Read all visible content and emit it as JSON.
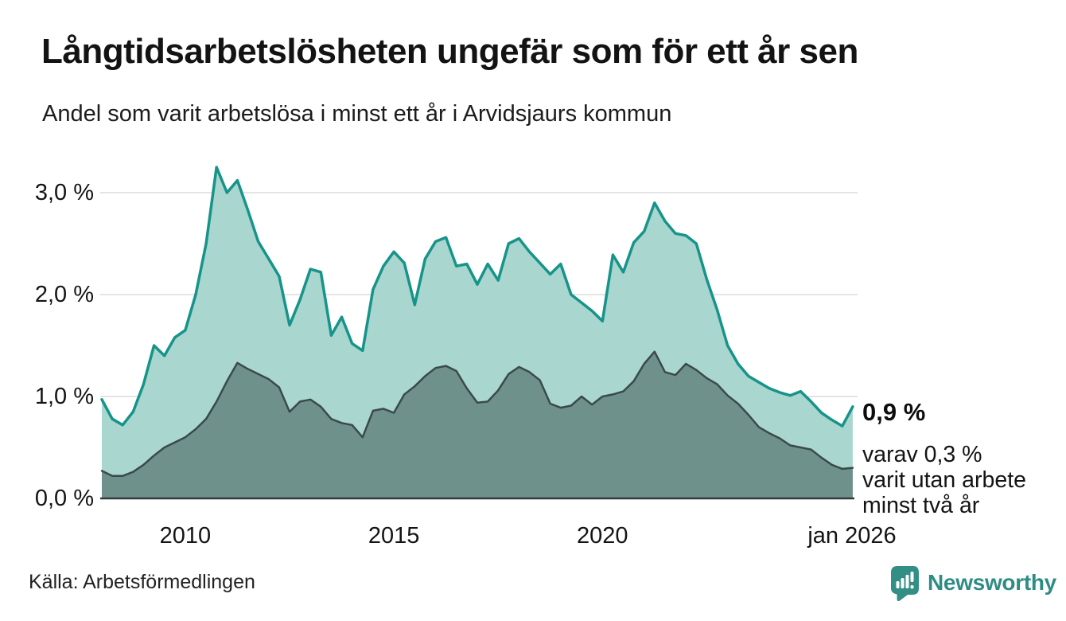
{
  "header": {
    "title": "Långtidsarbetslösheten ungefär som för ett år sen",
    "subtitle": "Andel som varit arbetslösa i minst ett år i Arvidsjaurs kommun"
  },
  "footer": {
    "source": "Källa: Arbetsförmedlingen",
    "brand": "Newsworthy"
  },
  "colors": {
    "series1_line": "#17948a",
    "series1_fill": "#a9d6cf",
    "series2_line": "#3a4a4c",
    "series2_fill": "#6f918c",
    "gridline": "#e4e4e4",
    "baseline": "#333b3b",
    "brand_teal": "#2e8c85",
    "text": "#141414"
  },
  "chart_data": {
    "type": "area",
    "title": "Långtidsarbetslösheten ungefär som för ett år sen",
    "subtitle": "Andel som varit arbetslösa i minst ett år i Arvidsjaurs kommun",
    "unit": "%",
    "x_start": 2008.0,
    "x_step": 0.25,
    "xlim": [
      2008.0,
      2026.04
    ],
    "ylim": [
      0,
      3.4
    ],
    "grid": "horizontal",
    "x_ticks": [
      {
        "x": 2010,
        "label": "2010"
      },
      {
        "x": 2015,
        "label": "2015"
      },
      {
        "x": 2020,
        "label": "2020"
      },
      {
        "x": 2026,
        "label": "jan 2026"
      }
    ],
    "y_ticks": [
      {
        "v": 0,
        "label": "0,0 %",
        "gridline": false
      },
      {
        "v": 1,
        "label": "1,0 %",
        "gridline": true
      },
      {
        "v": 2,
        "label": "2,0 %",
        "gridline": true
      },
      {
        "v": 3,
        "label": "3,0 %",
        "gridline": true
      }
    ],
    "series": [
      {
        "name": "Andel som varit arbetslösa minst ett år",
        "line_color": "#17948a",
        "fill_color": "#a9d6cf",
        "values": [
          0.97,
          0.78,
          0.72,
          0.85,
          1.12,
          1.5,
          1.4,
          1.58,
          1.65,
          2.0,
          2.5,
          3.25,
          3.0,
          3.12,
          2.83,
          2.52,
          2.35,
          2.18,
          1.7,
          1.95,
          2.25,
          2.22,
          1.6,
          1.78,
          1.52,
          1.45,
          2.05,
          2.28,
          2.42,
          2.31,
          1.9,
          2.35,
          2.52,
          2.56,
          2.28,
          2.3,
          2.1,
          2.3,
          2.14,
          2.5,
          2.55,
          2.42,
          2.31,
          2.2,
          2.3,
          2.0,
          1.92,
          1.84,
          1.74,
          2.39,
          2.22,
          2.51,
          2.62,
          2.9,
          2.72,
          2.6,
          2.58,
          2.5,
          2.15,
          1.85,
          1.5,
          1.32,
          1.2,
          1.14,
          1.08,
          1.04,
          1.01,
          1.05,
          0.95,
          0.84,
          0.77,
          0.71,
          0.9
        ]
      },
      {
        "name": "varav arbetslösa minst två år",
        "line_color": "#3a4a4c",
        "fill_color": "#6f918c",
        "values": [
          0.27,
          0.22,
          0.22,
          0.26,
          0.33,
          0.42,
          0.5,
          0.55,
          0.6,
          0.68,
          0.78,
          0.95,
          1.15,
          1.33,
          1.27,
          1.22,
          1.17,
          1.09,
          0.85,
          0.95,
          0.97,
          0.9,
          0.78,
          0.74,
          0.72,
          0.6,
          0.86,
          0.88,
          0.84,
          1.02,
          1.1,
          1.2,
          1.28,
          1.3,
          1.25,
          1.08,
          0.94,
          0.95,
          1.06,
          1.22,
          1.29,
          1.24,
          1.16,
          0.93,
          0.89,
          0.91,
          1.0,
          0.92,
          1.0,
          1.02,
          1.05,
          1.15,
          1.32,
          1.44,
          1.24,
          1.21,
          1.32,
          1.26,
          1.18,
          1.12,
          1.01,
          0.93,
          0.82,
          0.7,
          0.64,
          0.59,
          0.52,
          0.5,
          0.48,
          0.4,
          0.33,
          0.29,
          0.3
        ]
      }
    ],
    "annotations": {
      "end_value_label": "0,9 %",
      "end_sub_lines": [
        "varav 0,3 %",
        "varit utan arbete",
        "minst två år"
      ]
    }
  }
}
